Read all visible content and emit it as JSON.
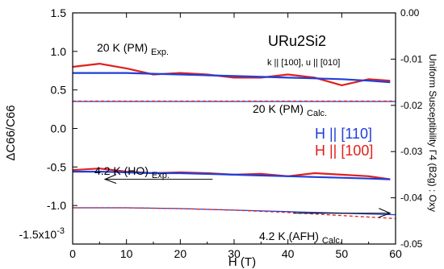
{
  "chart_data": {
    "type": "line",
    "title": "URu2Si2",
    "subtitle": "k || [100], u || [010]",
    "xlabel": "H (T)",
    "ylabel_left": "ΔC66/C66",
    "ylabel_right": "Uniform Susceptibility  Γ4 (B2g) : Oxy",
    "xlim": [
      0,
      60
    ],
    "ylim_left": [
      -1.5,
      1.5
    ],
    "ylim_right": [
      -0.05,
      0.0
    ],
    "y_multiplier_label": "-1.5x10",
    "y_multiplier_exp": "-3",
    "x_ticks": [
      0,
      10,
      20,
      30,
      40,
      50,
      60
    ],
    "y_left_ticks": [
      1.5,
      1.0,
      0.5,
      0.0,
      -0.5,
      -1.0
    ],
    "y_left_tick_labels": [
      "1.5",
      "1.0",
      "0.5",
      "0.0",
      "-0.5",
      "-1.0"
    ],
    "y_right_ticks": [
      0.0,
      -0.01,
      -0.02,
      -0.03,
      -0.04,
      -0.05
    ],
    "y_right_tick_labels": [
      "0.00",
      "-0.01",
      "-0.02",
      "-0.03",
      "-0.04",
      "-0.05"
    ],
    "legend": {
      "position": "center-right",
      "entries": [
        {
          "label": "H || [110]",
          "color": "#1f3fdc"
        },
        {
          "label": "H || [100]",
          "color": "#e0201c"
        }
      ]
    },
    "annotations": [
      {
        "main": "20 K (PM)",
        "sub": "Exp."
      },
      {
        "main": "20 K (PM)",
        "sub": "Calc."
      },
      {
        "main": "4.2 K (HO)",
        "sub": "Exp."
      },
      {
        "main": "4.2 K (AFH)",
        "sub": "Calc."
      }
    ],
    "series": [
      {
        "name": "H || [100]",
        "color": "#e0201c",
        "role": "exp-20K",
        "x": [
          0,
          5,
          10,
          15,
          20,
          25,
          30,
          35,
          40,
          45,
          50,
          55,
          59
        ],
        "y": [
          0.8,
          0.84,
          0.78,
          0.7,
          0.72,
          0.7,
          0.66,
          0.66,
          0.7,
          0.66,
          0.56,
          0.64,
          0.62
        ]
      },
      {
        "name": "H || [110]",
        "color": "#1f3fdc",
        "role": "exp-20K",
        "x": [
          0,
          5,
          10,
          15,
          20,
          25,
          30,
          35,
          40,
          45,
          50,
          55,
          59
        ],
        "y": [
          0.72,
          0.72,
          0.72,
          0.71,
          0.7,
          0.69,
          0.68,
          0.67,
          0.66,
          0.65,
          0.64,
          0.62,
          0.6
        ]
      },
      {
        "name": "H || [100]",
        "color": "#e0201c",
        "role": "exp-4.2K",
        "x": [
          0,
          5,
          10,
          15,
          20,
          25,
          30,
          35,
          40,
          45,
          50,
          55,
          59
        ],
        "y": [
          -0.54,
          -0.52,
          -0.56,
          -0.58,
          -0.57,
          -0.58,
          -0.6,
          -0.59,
          -0.62,
          -0.58,
          -0.6,
          -0.62,
          -0.66
        ]
      },
      {
        "name": "H || [110]",
        "color": "#1f3fdc",
        "role": "exp-4.2K",
        "x": [
          0,
          5,
          10,
          15,
          20,
          25,
          30,
          35,
          40,
          45,
          50,
          55,
          59
        ],
        "y": [
          -0.56,
          -0.56,
          -0.57,
          -0.58,
          -0.58,
          -0.59,
          -0.6,
          -0.61,
          -0.62,
          -0.63,
          -0.64,
          -0.65,
          -0.66
        ]
      },
      {
        "name": "H || [110]",
        "color": "#1f3fdc",
        "role": "calc-20K",
        "x": [
          0,
          60
        ],
        "y": [
          0.35,
          0.35
        ]
      },
      {
        "name": "H || [100]",
        "color": "#e0201c",
        "role": "calc-20K",
        "x": [
          0,
          60
        ],
        "y": [
          0.355,
          0.355
        ]
      },
      {
        "name": "H || [110]",
        "color": "#1f3fdc",
        "role": "calc-4.2K",
        "x": [
          0,
          10,
          20,
          30,
          40,
          50,
          60
        ],
        "y": [
          -1.03,
          -1.03,
          -1.04,
          -1.06,
          -1.08,
          -1.1,
          -1.12
        ]
      },
      {
        "name": "H || [100]",
        "color": "#e0201c",
        "role": "calc-4.2K",
        "x": [
          0,
          10,
          20,
          30,
          40,
          50,
          60
        ],
        "y": [
          -1.03,
          -1.03,
          -1.04,
          -1.06,
          -1.09,
          -1.13,
          -1.17
        ]
      }
    ],
    "arrows": [
      {
        "x_from": 26,
        "x_to": 6,
        "y": -0.66
      },
      {
        "x_from": 41,
        "x_to": 59,
        "y": -1.1
      }
    ]
  }
}
